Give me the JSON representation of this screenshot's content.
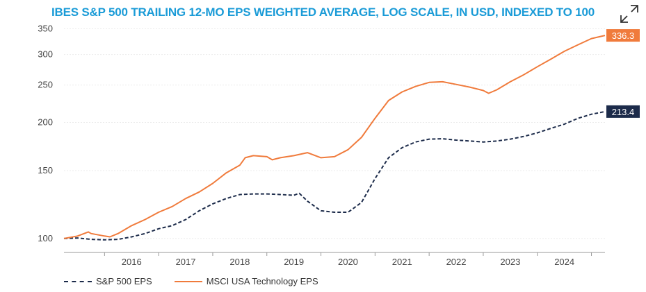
{
  "chart_data": {
    "type": "line",
    "title": "IBES S&P 500 TRAILING 12-MO EPS WEIGHTED AVERAGE, LOG SCALE, IN USD, INDEXED TO 100",
    "yscale": "log",
    "ylim": [
      92,
      355
    ],
    "xlim": [
      2015.25,
      2025.25
    ],
    "yticks": [
      100,
      150,
      200,
      250,
      300,
      350
    ],
    "ytick_labels": [
      "100",
      "150",
      "200",
      "250",
      "300",
      "350"
    ],
    "xticks": [
      2016,
      2017,
      2018,
      2019,
      2020,
      2021,
      2022,
      2023,
      2024
    ],
    "xtick_labels": [
      "2016",
      "2017",
      "2018",
      "2019",
      "2020",
      "2021",
      "2022",
      "2023",
      "2024"
    ],
    "grid": true,
    "legend_position": "bottom-left",
    "series": [
      {
        "name": "S&P 500 EPS",
        "color": "#1c2b4a",
        "style": "dashed",
        "end_label": "213.4",
        "points": [
          [
            2015.25,
            100
          ],
          [
            2015.5,
            100.3
          ],
          [
            2015.75,
            99.5
          ],
          [
            2016.0,
            99.2
          ],
          [
            2016.25,
            99.5
          ],
          [
            2016.5,
            101
          ],
          [
            2016.75,
            103
          ],
          [
            2017.0,
            106
          ],
          [
            2017.25,
            108
          ],
          [
            2017.5,
            112
          ],
          [
            2017.75,
            118
          ],
          [
            2018.0,
            123
          ],
          [
            2018.25,
            127
          ],
          [
            2018.5,
            130
          ],
          [
            2018.75,
            130.5
          ],
          [
            2019.0,
            130.5
          ],
          [
            2019.25,
            130
          ],
          [
            2019.5,
            129.5
          ],
          [
            2019.6,
            131
          ],
          [
            2019.75,
            125
          ],
          [
            2020.0,
            118
          ],
          [
            2020.25,
            117
          ],
          [
            2020.5,
            117
          ],
          [
            2020.75,
            124
          ],
          [
            2021.0,
            143
          ],
          [
            2021.25,
            162
          ],
          [
            2021.5,
            172
          ],
          [
            2021.75,
            178
          ],
          [
            2022.0,
            181
          ],
          [
            2022.25,
            181.5
          ],
          [
            2022.5,
            180
          ],
          [
            2022.75,
            179
          ],
          [
            2023.0,
            178
          ],
          [
            2023.25,
            179
          ],
          [
            2023.5,
            181
          ],
          [
            2023.75,
            184
          ],
          [
            2024.0,
            188
          ],
          [
            2024.25,
            193
          ],
          [
            2024.5,
            198
          ],
          [
            2024.75,
            205
          ],
          [
            2025.0,
            210
          ],
          [
            2025.25,
            213.4
          ]
        ]
      },
      {
        "name": "MSCI USA Technology EPS",
        "color": "#f07b3c",
        "style": "solid",
        "end_label": "336.3",
        "points": [
          [
            2015.25,
            100
          ],
          [
            2015.5,
            101.5
          ],
          [
            2015.7,
            104
          ],
          [
            2015.75,
            103
          ],
          [
            2016.0,
            101.5
          ],
          [
            2016.1,
            101
          ],
          [
            2016.25,
            103
          ],
          [
            2016.5,
            108
          ],
          [
            2016.75,
            112
          ],
          [
            2017.0,
            117
          ],
          [
            2017.25,
            121
          ],
          [
            2017.5,
            127
          ],
          [
            2017.75,
            132
          ],
          [
            2018.0,
            139
          ],
          [
            2018.25,
            148
          ],
          [
            2018.5,
            155
          ],
          [
            2018.6,
            162
          ],
          [
            2018.75,
            164
          ],
          [
            2019.0,
            163
          ],
          [
            2019.1,
            160
          ],
          [
            2019.25,
            162
          ],
          [
            2019.5,
            164
          ],
          [
            2019.75,
            167
          ],
          [
            2020.0,
            162
          ],
          [
            2020.25,
            163
          ],
          [
            2020.5,
            170
          ],
          [
            2020.75,
            183
          ],
          [
            2021.0,
            205
          ],
          [
            2021.25,
            228
          ],
          [
            2021.5,
            240
          ],
          [
            2021.75,
            248
          ],
          [
            2022.0,
            254
          ],
          [
            2022.25,
            255
          ],
          [
            2022.5,
            251
          ],
          [
            2022.75,
            247
          ],
          [
            2023.0,
            242
          ],
          [
            2023.1,
            238
          ],
          [
            2023.25,
            243
          ],
          [
            2023.5,
            255
          ],
          [
            2023.75,
            266
          ],
          [
            2024.0,
            279
          ],
          [
            2024.25,
            292
          ],
          [
            2024.5,
            306
          ],
          [
            2024.75,
            318
          ],
          [
            2025.0,
            330
          ],
          [
            2025.25,
            336.3
          ]
        ]
      }
    ]
  },
  "ui": {
    "expand_icon": "expand-diagonal-arrows-icon"
  }
}
